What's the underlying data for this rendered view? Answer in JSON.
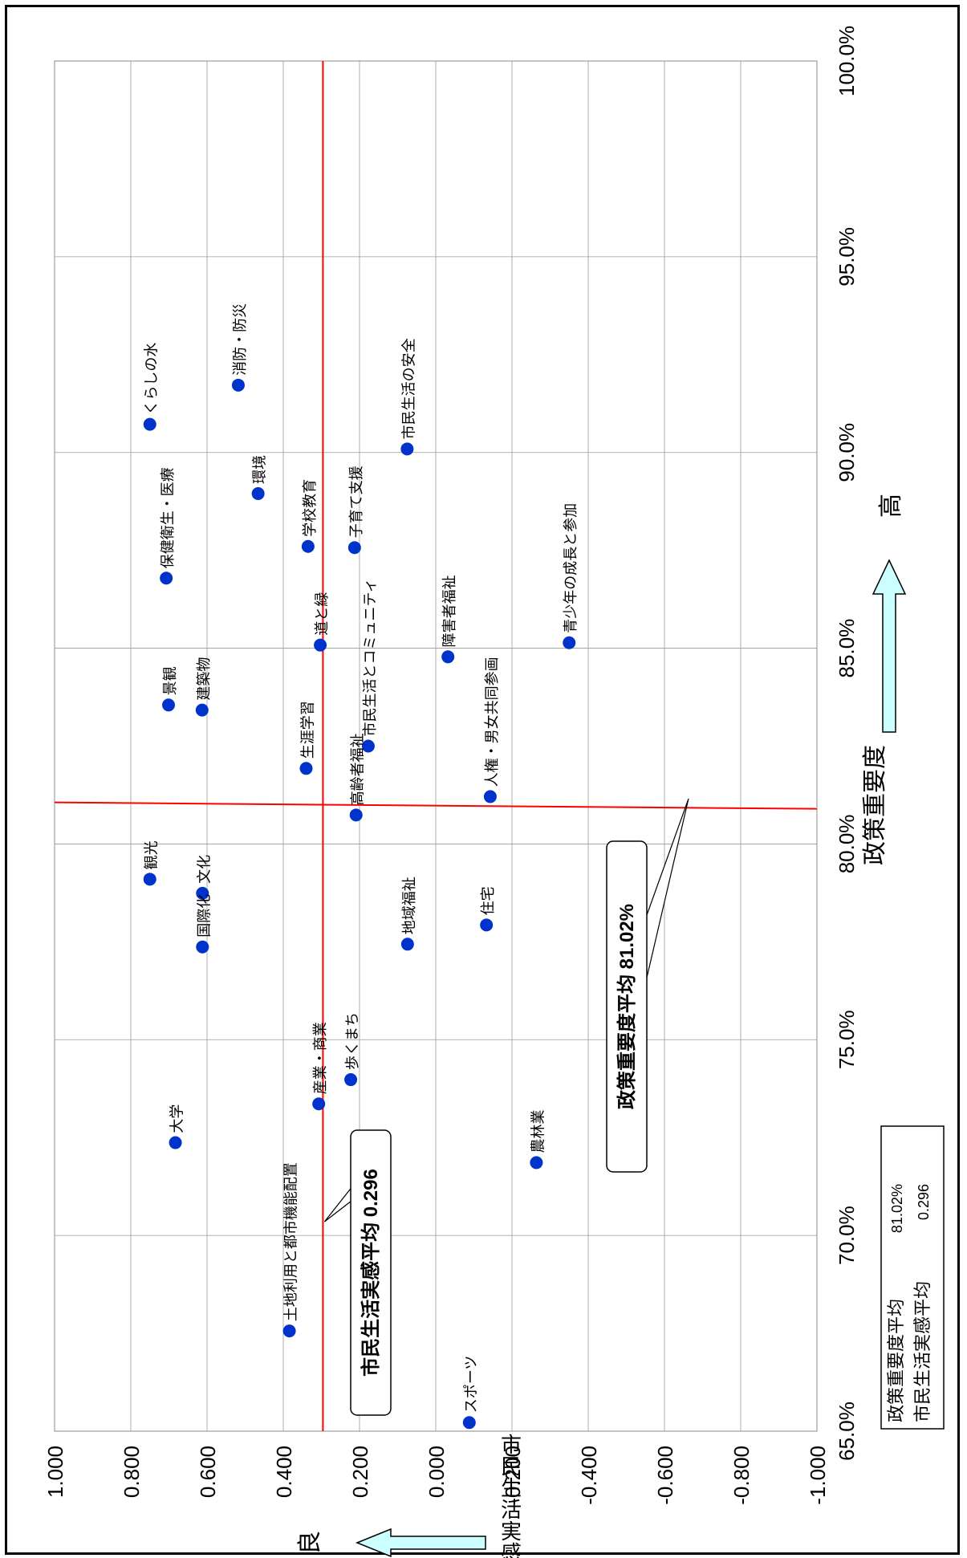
{
  "chart_data": {
    "type": "scatter",
    "orientation": "rotated-90-clockwise",
    "xlabel": "政策重要度",
    "xlabel_high": "高",
    "ylabel": "市民生活実感",
    "ylabel_good": "良",
    "xlim": [
      0.65,
      1.0
    ],
    "ylim": [
      -1.0,
      1.0
    ],
    "x_ticks": [
      "65.0%",
      "70.0%",
      "75.0%",
      "80.0%",
      "85.0%",
      "90.0%",
      "95.0%",
      "100.0%"
    ],
    "x_tick_values": [
      0.65,
      0.7,
      0.75,
      0.8,
      0.85,
      0.9,
      0.95,
      1.0
    ],
    "y_ticks": [
      "1.000",
      "0.800",
      "0.600",
      "0.400",
      "0.200",
      "0.000",
      "-0.200",
      "-0.400",
      "-0.600",
      "-0.800",
      "-1.000"
    ],
    "y_tick_values": [
      1.0,
      0.8,
      0.6,
      0.4,
      0.2,
      0.0,
      -0.2,
      -0.4,
      -0.6,
      -0.8,
      -1.0
    ],
    "grid": true,
    "point_color": "#0033cc",
    "avg_line_color": "#ff0000",
    "arrow_fill": "#ccffff",
    "avg_x": 0.8102,
    "avg_y": 0.296,
    "callout_x": "政策重要度平均 81.02%",
    "callout_y": "市民生活実感平均 0.296",
    "summary_box": {
      "rows": [
        {
          "label": "政策重要度平均",
          "value": "81.02%"
        },
        {
          "label": "市民生活実感平均",
          "value": "0.296"
        }
      ]
    },
    "points": [
      {
        "label": "くらしの水",
        "x": 0.9072,
        "y": 0.75
      },
      {
        "label": "消防・防災",
        "x": 0.9172,
        "y": 0.518
      },
      {
        "label": "環境",
        "x": 0.8895,
        "y": 0.466
      },
      {
        "label": "市民生活の安全",
        "x": 0.9009,
        "y": 0.075
      },
      {
        "label": "保健衛生・医療",
        "x": 0.8679,
        "y": 0.707
      },
      {
        "label": "学校教育",
        "x": 0.876,
        "y": 0.335
      },
      {
        "label": "子育て支援",
        "x": 0.8757,
        "y": 0.213
      },
      {
        "label": "道と緑",
        "x": 0.8508,
        "y": 0.303
      },
      {
        "label": "障害者福祉",
        "x": 0.8478,
        "y": -0.032
      },
      {
        "label": "青少年の成長と参加",
        "x": 0.8514,
        "y": -0.35
      },
      {
        "label": "景観",
        "x": 0.8355,
        "y": 0.701
      },
      {
        "label": "建築物",
        "x": 0.8342,
        "y": 0.613
      },
      {
        "label": "生涯学習",
        "x": 0.8193,
        "y": 0.34
      },
      {
        "label": "市民生活とコミュニティ",
        "x": 0.825,
        "y": 0.177
      },
      {
        "label": "人権・男女共同参画",
        "x": 0.8121,
        "y": -0.143
      },
      {
        "label": "高齢者福祉",
        "x": 0.8074,
        "y": 0.209
      },
      {
        "label": "観光",
        "x": 0.791,
        "y": 0.75
      },
      {
        "label": "文化",
        "x": 0.7874,
        "y": 0.612
      },
      {
        "label": "国際化",
        "x": 0.7737,
        "y": 0.612
      },
      {
        "label": "住宅",
        "x": 0.7793,
        "y": -0.133
      },
      {
        "label": "地域福祉",
        "x": 0.7744,
        "y": 0.074
      },
      {
        "label": "歩くまち",
        "x": 0.7398,
        "y": 0.223
      },
      {
        "label": "産業・商業",
        "x": 0.7336,
        "y": 0.307
      },
      {
        "label": "大学",
        "x": 0.7237,
        "y": 0.683
      },
      {
        "label": "農林業",
        "x": 0.7186,
        "y": -0.264
      },
      {
        "label": "土地利用と都市機能配置",
        "x": 0.6756,
        "y": 0.384
      },
      {
        "label": "スポーツ",
        "x": 0.6522,
        "y": -0.088
      }
    ]
  }
}
